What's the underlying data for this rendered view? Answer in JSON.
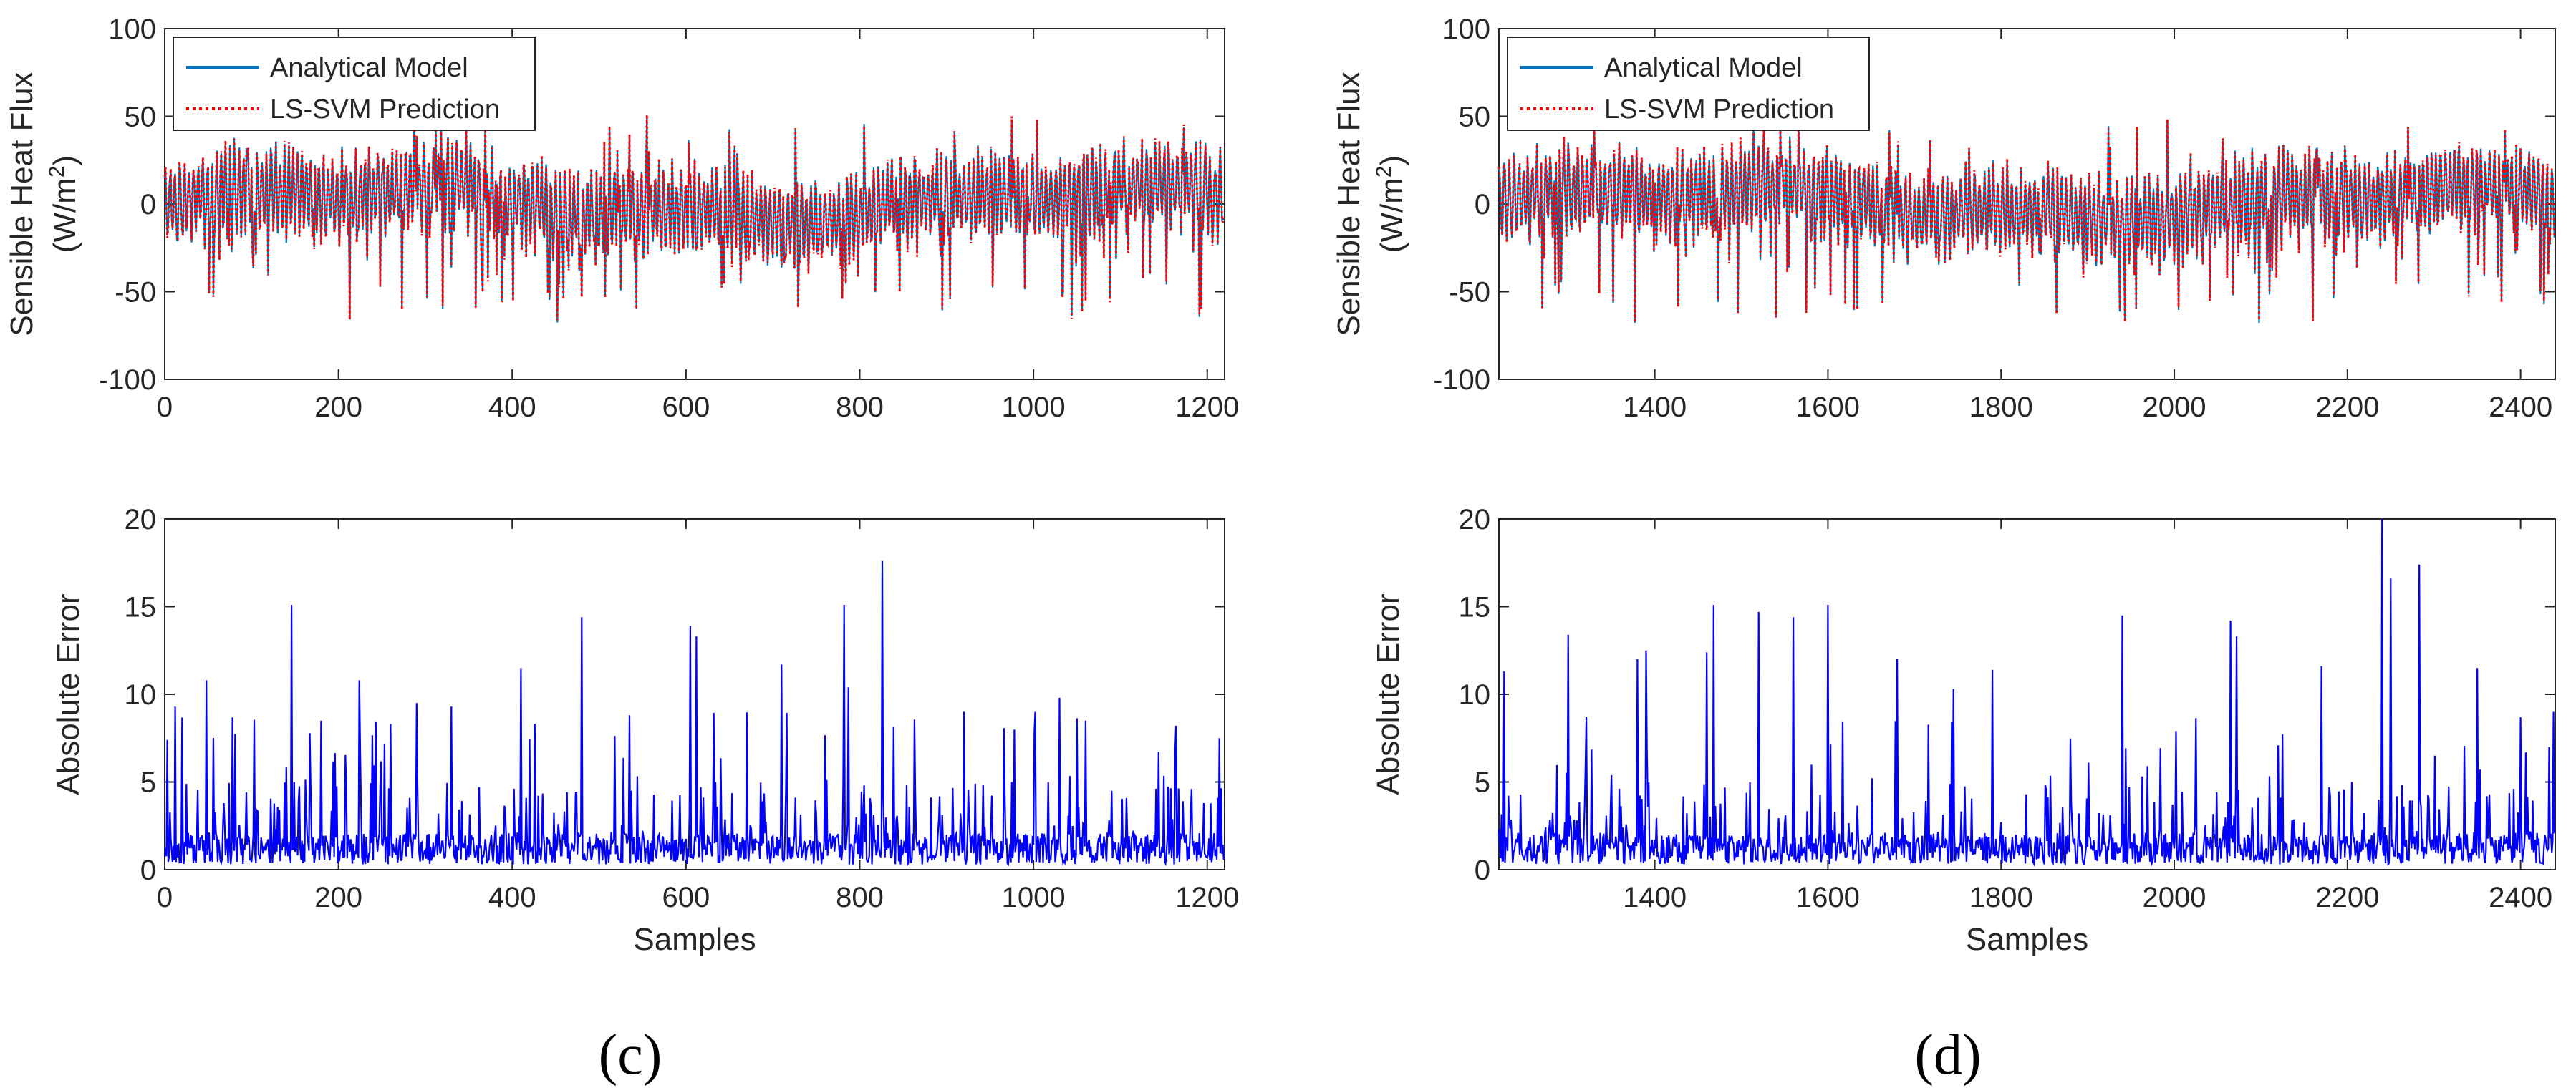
{
  "figure": {
    "panel_c_label": "(c)",
    "panel_d_label": "(d)"
  },
  "chart_data": [
    {
      "id": "c-top",
      "type": "line",
      "ylabel_line1": "Sensible Heat Flux",
      "ylabel_line2_pre": "(W/m",
      "ylabel_line2_sup": "2",
      "ylabel_line2_post": ")",
      "xlabel": "",
      "xlim": [
        0,
        1220
      ],
      "ylim": [
        -100,
        100
      ],
      "xticks": [
        0,
        200,
        400,
        600,
        800,
        1000,
        1200
      ],
      "yticks": [
        -100,
        -50,
        0,
        50,
        100
      ],
      "legend": {
        "position": "top-left",
        "entries": [
          "Analytical Model",
          "LS-SVM Prediction"
        ]
      },
      "series": [
        {
          "name": "Analytical Model",
          "color": "#0072BD",
          "style": "solid",
          "n": 1220,
          "seed": 11,
          "centre": 0,
          "amp": 25,
          "dip_min": -68,
          "peak_max": 50,
          "note": "dense oscillating signal, approx. range -68 to 50 W/m2"
        },
        {
          "name": "LS-SVM Prediction",
          "color": "#FF0000",
          "style": "dotted",
          "n": 1220,
          "seed": 11,
          "note": "closely tracks the analytical model"
        }
      ]
    },
    {
      "id": "c-bottom",
      "type": "line",
      "ylabel": "Absolute Error",
      "xlabel": "Samples",
      "xlim": [
        0,
        1220
      ],
      "ylim": [
        0,
        20
      ],
      "xticks": [
        0,
        200,
        400,
        600,
        800,
        1000,
        1200
      ],
      "yticks": [
        0,
        5,
        10,
        15,
        20
      ],
      "series": [
        {
          "name": "Absolute Error",
          "color": "#0000FF",
          "n": 1220,
          "seed": 23,
          "spikes": [
            [
              3,
              7.4
            ],
            [
              12,
              9.3
            ],
            [
              48,
              10.8
            ],
            [
              146,
              15.1
            ],
            [
              180,
              8.5
            ],
            [
              224,
              10.8
            ],
            [
              260,
              8.3
            ],
            [
              290,
              9.5
            ],
            [
              330,
              9.3
            ],
            [
              410,
              11.5
            ],
            [
              480,
              14.4
            ],
            [
              535,
              8.8
            ],
            [
              605,
              13.9
            ],
            [
              612,
              13.3
            ],
            [
              710,
              11.7
            ],
            [
              782,
              15.1
            ],
            [
              787,
              10.4
            ],
            [
              826,
              17.6
            ],
            [
              920,
              9.0
            ],
            [
              1030,
              9.8
            ],
            [
              1060,
              8.5
            ],
            [
              1214,
              7.5
            ]
          ]
        }
      ]
    },
    {
      "id": "d-top",
      "type": "line",
      "ylabel_line1": "Sensible Heat Flux",
      "ylabel_line2_pre": "(W/m",
      "ylabel_line2_sup": "2",
      "ylabel_line2_post": ")",
      "xlabel": "",
      "xlim": [
        1220,
        2440
      ],
      "ylim": [
        -100,
        100
      ],
      "xticks": [
        1400,
        1600,
        1800,
        2000,
        2200,
        2400
      ],
      "yticks": [
        -100,
        -50,
        0,
        50,
        100
      ],
      "legend": {
        "position": "top-left",
        "entries": [
          "Analytical Model",
          "LS-SVM Prediction"
        ]
      },
      "series": [
        {
          "name": "Analytical Model",
          "color": "#0072BD",
          "style": "solid",
          "n": 1220,
          "seed": 37,
          "centre": 0,
          "amp": 25,
          "dip_min": -68,
          "peak_max": 50,
          "note": "dense oscillating signal, approx. range -68 to 50 W/m2"
        },
        {
          "name": "LS-SVM Prediction",
          "color": "#FF0000",
          "style": "dotted",
          "n": 1220,
          "seed": 37,
          "note": "closely tracks the analytical model"
        }
      ]
    },
    {
      "id": "d-bottom",
      "type": "line",
      "ylabel": "Absolute Error",
      "xlabel": "Samples",
      "xlim": [
        1220,
        2440
      ],
      "ylim": [
        0,
        20
      ],
      "xticks": [
        1400,
        1600,
        1800,
        2000,
        2200,
        2400
      ],
      "yticks": [
        0,
        5,
        10,
        15,
        20
      ],
      "series": [
        {
          "name": "Absolute Error",
          "color": "#0000FF",
          "n": 1220,
          "seed": 53,
          "spikes": [
            [
              1226,
              11.3
            ],
            [
              1300,
              13.4
            ],
            [
              1380,
              12.0
            ],
            [
              1390,
              12.5
            ],
            [
              1460,
              12.4
            ],
            [
              1468,
              15.1
            ],
            [
              1520,
              14.7
            ],
            [
              1560,
              14.4
            ],
            [
              1600,
              15.1
            ],
            [
              1680,
              12.0
            ],
            [
              1745,
              10.3
            ],
            [
              1790,
              11.4
            ],
            [
              1940,
              14.5
            ],
            [
              2065,
              14.2
            ],
            [
              2072,
              13.3
            ],
            [
              2170,
              11.6
            ],
            [
              2240,
              20.0
            ],
            [
              2250,
              16.6
            ],
            [
              2283,
              17.4
            ],
            [
              2350,
              11.5
            ],
            [
              2400,
              8.7
            ],
            [
              2438,
              9.0
            ]
          ]
        }
      ]
    }
  ]
}
